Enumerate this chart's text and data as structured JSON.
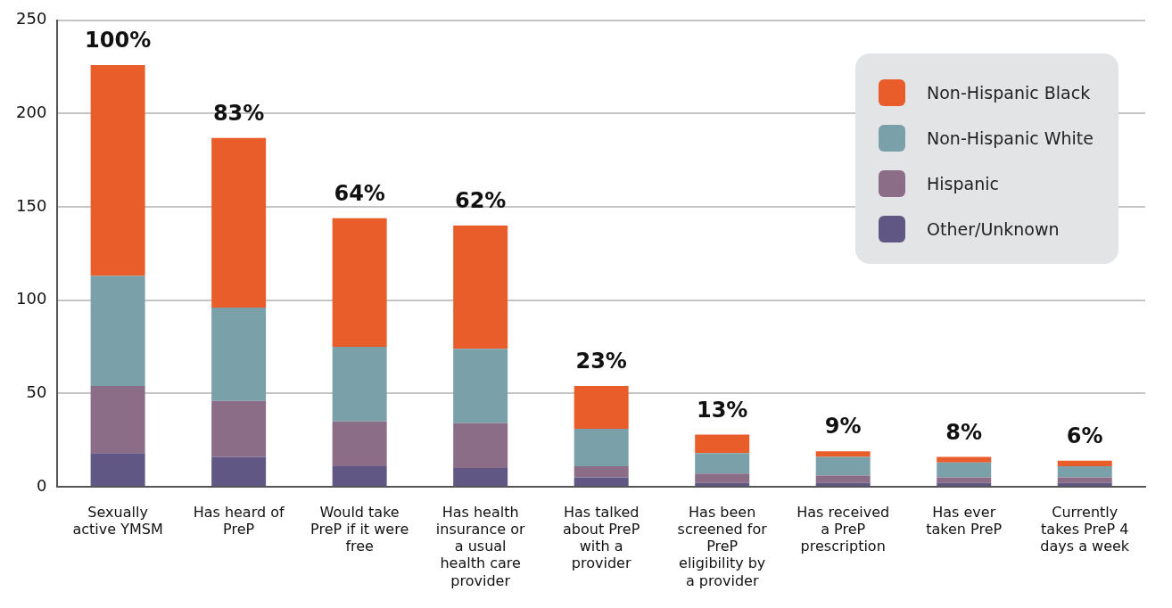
{
  "chart_data": {
    "type": "bar",
    "stacked": true,
    "categories": [
      "Sexually active YMSM",
      "Has heard of PreP",
      "Would take PreP if it were free",
      "Has health insurance or a usual health care provider",
      "Has talked about PreP with a provider",
      "Has been screened for PreP eligibility by a provider",
      "Has received a PreP prescription",
      "Has ever taken PreP",
      "Currently takes PreP 4 days a week"
    ],
    "series": [
      {
        "name": "Other/Unknown",
        "color": "#615784",
        "values": [
          18,
          16,
          11,
          10,
          5,
          2,
          2,
          2,
          2
        ]
      },
      {
        "name": "Hispanic",
        "color": "#8b6d88",
        "values": [
          36,
          30,
          24,
          24,
          6,
          5,
          4,
          3,
          3
        ]
      },
      {
        "name": "Non-Hispanic White",
        "color": "#7aa0aa",
        "values": [
          59,
          50,
          40,
          40,
          20,
          11,
          10,
          8,
          6
        ]
      },
      {
        "name": "Non-Hispanic Black",
        "color": "#e85d2a",
        "values": [
          113,
          91,
          69,
          66,
          23,
          10,
          3,
          3,
          3
        ]
      }
    ],
    "annotations": [
      {
        "text": "100%",
        "x": "Sexually active YMSM",
        "y": 226
      },
      {
        "text": "83%",
        "x": "Has heard of PreP",
        "y": 187
      },
      {
        "text": "64%",
        "x": "Would take PreP if it were free",
        "y": 144
      },
      {
        "text": "62%",
        "x": "Has health insurance or a usual health care provider",
        "y": 140
      },
      {
        "text": "23%",
        "x": "Has talked about PreP with a provider",
        "y": 54
      },
      {
        "text": "13%",
        "x": "Has been screened for PreP eligibility by a provider",
        "y": 28
      },
      {
        "text": "9%",
        "x": "Has received a PreP prescription",
        "y": 19
      },
      {
        "text": "8%",
        "x": "Has ever taken PreP",
        "y": 16
      },
      {
        "text": "6%",
        "x": "Currently takes PreP 4 days a week",
        "y": 14
      }
    ],
    "ylim": [
      0,
      250
    ],
    "yticks": [
      0,
      50,
      100,
      150,
      200,
      250
    ],
    "grid": "y",
    "legend": "top right"
  }
}
